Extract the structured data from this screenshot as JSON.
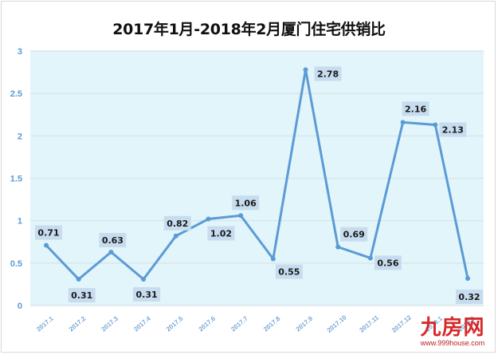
{
  "chart_data": {
    "type": "line",
    "title": "2017年1月-2018年2月厦门住宅供销比",
    "categories": [
      "2017.1",
      "2017.2",
      "2017.3",
      "2017.4",
      "2017.5",
      "2017.6",
      "2017.7",
      "2017.8",
      "2017.9",
      "2017.10",
      "2017.11",
      "2017.12",
      "2018.1",
      "2018.2"
    ],
    "x_tick_labels_visible": [
      "2017.1",
      "2017.2",
      "2017.3",
      "2017.4",
      "2017.5",
      "2017.6",
      "2017.7",
      "2017.8",
      "2017.9",
      "2017.10",
      "2017.11",
      "2017.12",
      "2018.1",
      "2018.2"
    ],
    "series": [
      {
        "name": "供销比",
        "values": [
          0.71,
          0.31,
          0.63,
          0.31,
          0.82,
          1.02,
          1.06,
          0.55,
          2.78,
          0.69,
          0.56,
          2.16,
          2.13,
          0.32
        ]
      }
    ],
    "data_labels": [
      "0.71",
      "0.31",
      "0.63",
      "0.31",
      "0.82",
      "1.02",
      "1.06",
      "0.55",
      "2.78",
      "0.69",
      "0.56",
      "2.16",
      "2.13",
      "0.32"
    ],
    "xlabel": "",
    "ylabel": "",
    "ylim": [
      0,
      3
    ],
    "yticks": [
      "0",
      "0.5",
      "1",
      "1.5",
      "2",
      "2.5",
      "3"
    ],
    "grid": true,
    "legend": "none",
    "colors": {
      "line": "#5b9bd5",
      "plot_bg": "#e2f5fb",
      "label_bg": "#c7dcef",
      "grid": "#d9e6ea"
    }
  },
  "watermark": {
    "logo": "九房网",
    "url": "www.999house.com"
  }
}
